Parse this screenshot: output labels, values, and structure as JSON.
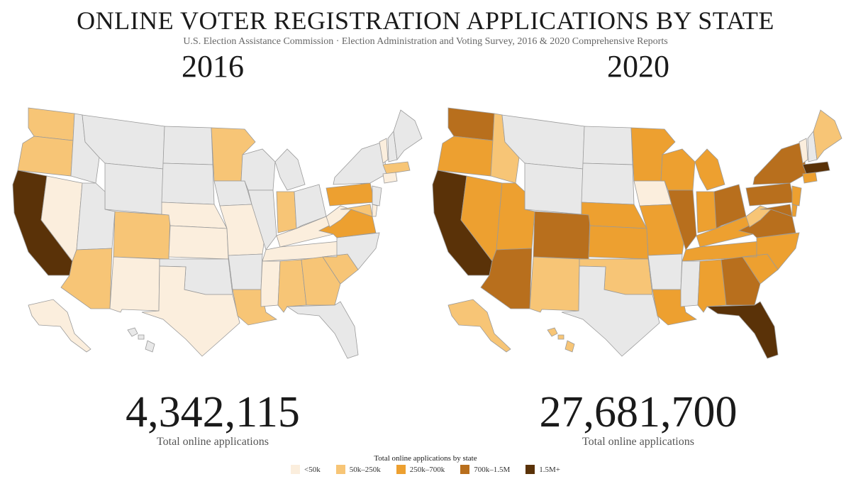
{
  "title": "ONLINE VOTER REGISTRATION APPLICATIONS BY STATE",
  "subtitle": "U.S. Election Assistance Commission · Election Administration and Voting Survey, 2016 & 2020 Comprehensive Reports",
  "legend": {
    "title": "Total online applications by state",
    "items": [
      {
        "label": "<50k",
        "color": "#fbeedd"
      },
      {
        "label": "50k–250k",
        "color": "#f7c576"
      },
      {
        "label": "250k–700k",
        "color": "#eda030"
      },
      {
        "label": "700k–1.5M",
        "color": "#b86f1d"
      },
      {
        "label": "1.5M+",
        "color": "#5a3208"
      }
    ],
    "no_data_color": "#e8e8e8"
  },
  "maps": [
    {
      "year": "2016",
      "total": "4,342,115",
      "total_label": "Total online applications",
      "states": {
        "WA": 1,
        "OR": 1,
        "CA": 4,
        "NV": 0,
        "ID": -1,
        "MT": -1,
        "WY": -1,
        "UT": -1,
        "AZ": 1,
        "CO": 1,
        "NM": 0,
        "ND": -1,
        "SD": -1,
        "NE": 0,
        "KS": 0,
        "OK": -1,
        "TX": 0,
        "MN": 1,
        "IA": -1,
        "MO": 0,
        "AR": -1,
        "LA": 1,
        "WI": -1,
        "IL": -1,
        "MI": -1,
        "IN": 1,
        "OH": -1,
        "KY": 0,
        "TN": 0,
        "MS": 0,
        "AL": 1,
        "GA": 1,
        "FL": -1,
        "SC": 1,
        "NC": -1,
        "VA": 2,
        "WV": 0,
        "PA": 2,
        "NY": -1,
        "VT": 0,
        "NH": -1,
        "ME": -1,
        "MA": 1,
        "CT": 0,
        "NJ": -1,
        "MD": 1,
        "DE": 0,
        "AK": 0,
        "HI": -1
      }
    },
    {
      "year": "2020",
      "total": "27,681,700",
      "total_label": "Total online applications",
      "states": {
        "WA": 3,
        "OR": 2,
        "CA": 4,
        "NV": 2,
        "ID": 1,
        "MT": -1,
        "WY": -1,
        "UT": 2,
        "AZ": 3,
        "CO": 3,
        "NM": 1,
        "ND": -1,
        "SD": -1,
        "NE": 2,
        "KS": 2,
        "OK": 1,
        "TX": -1,
        "MN": 2,
        "IA": 0,
        "MO": 2,
        "AR": -1,
        "LA": 2,
        "WI": 2,
        "IL": 3,
        "MI": 2,
        "IN": 2,
        "OH": 3,
        "KY": 2,
        "TN": 2,
        "MS": -1,
        "AL": 2,
        "GA": 3,
        "FL": 4,
        "SC": 2,
        "NC": 2,
        "VA": 3,
        "WV": 1,
        "PA": 3,
        "NY": 3,
        "VT": 0,
        "NH": -1,
        "ME": 1,
        "MA": 4,
        "CT": 2,
        "NJ": 2,
        "MD": 3,
        "DE": 2,
        "AK": 1,
        "HI": 1
      }
    }
  ]
}
